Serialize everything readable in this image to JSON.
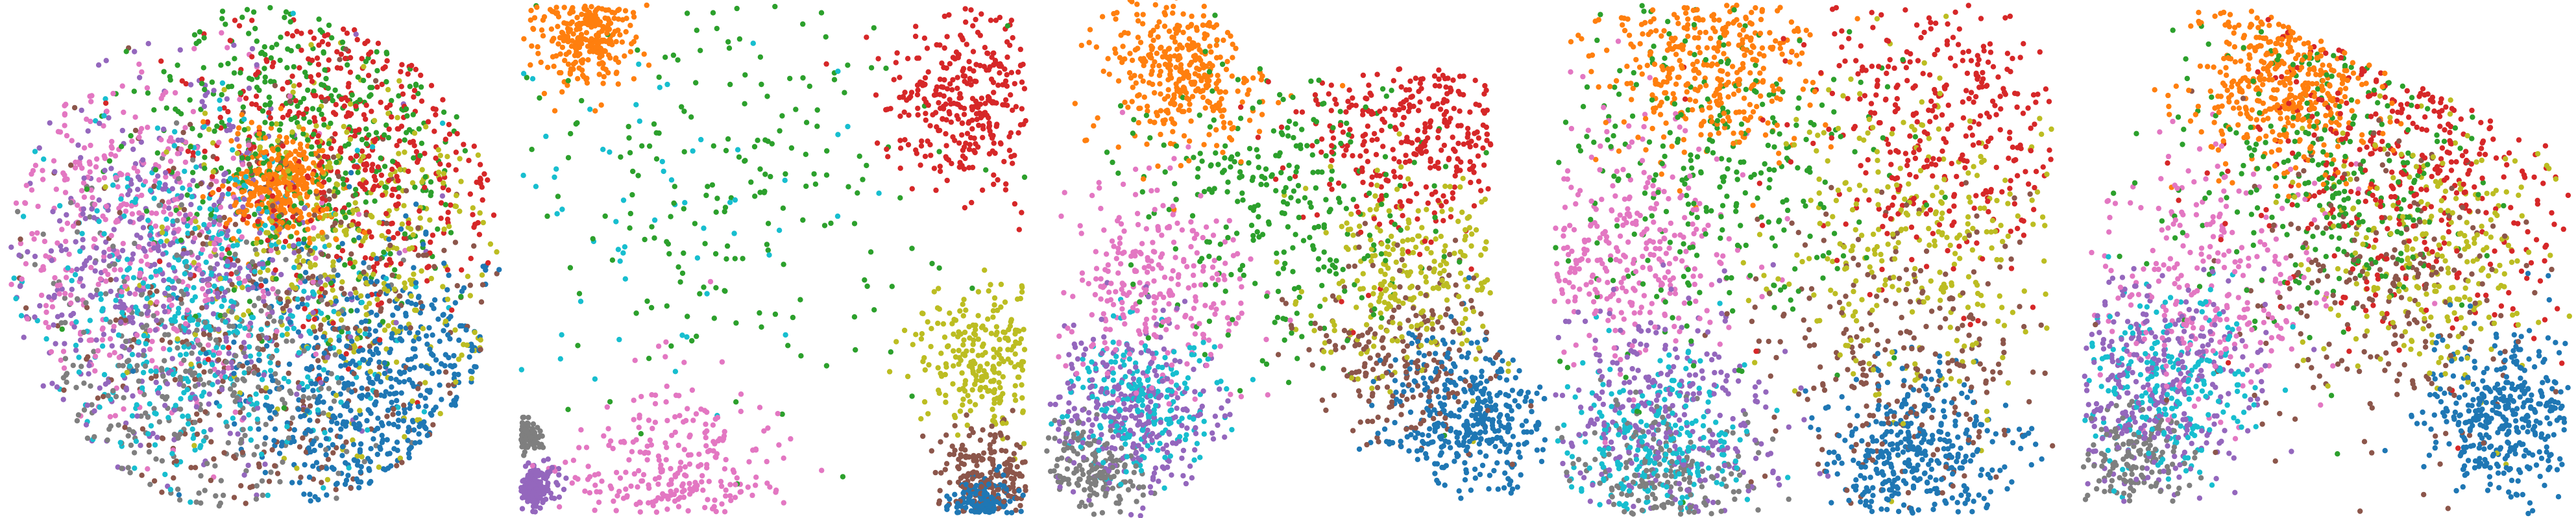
{
  "palette": {
    "0": "#1f77b4",
    "1": "#ff7f0e",
    "2": "#2ca02c",
    "3": "#d62728",
    "4": "#9467bd",
    "5": "#8c564b",
    "6": "#e377c2",
    "7": "#7f7f7f",
    "8": "#bcbd22",
    "9": "#17becf"
  },
  "chart_data": [
    {
      "type": "scatter",
      "title": "",
      "xlabel": "",
      "ylabel": "",
      "axes_visible": false,
      "grid": false,
      "legend": "none",
      "classes": [
        "0",
        "1",
        "2",
        "3",
        "4",
        "5",
        "6",
        "7",
        "8",
        "9"
      ],
      "x_range": [
        -1,
        1
      ],
      "y_range": [
        -1,
        1
      ],
      "shape": "disk",
      "clusters": [
        {
          "class": "0",
          "cx": 0.55,
          "cy": -0.55,
          "spread": 0.3,
          "n": 520
        },
        {
          "class": "1",
          "cx": 0.1,
          "cy": 0.28,
          "spread": 0.1,
          "n": 320
        },
        {
          "class": "2",
          "cx": 0.25,
          "cy": 0.55,
          "spread": 0.35,
          "n": 420
        },
        {
          "class": "3",
          "cx": 0.45,
          "cy": 0.5,
          "spread": 0.35,
          "n": 420
        },
        {
          "class": "4",
          "cx": -0.4,
          "cy": -0.1,
          "spread": 0.4,
          "n": 480
        },
        {
          "class": "5",
          "cx": 0.1,
          "cy": -0.3,
          "spread": 0.45,
          "n": 360
        },
        {
          "class": "6",
          "cx": -0.55,
          "cy": 0.1,
          "spread": 0.35,
          "n": 400
        },
        {
          "class": "7",
          "cx": -0.3,
          "cy": -0.45,
          "spread": 0.35,
          "n": 360
        },
        {
          "class": "8",
          "cx": 0.4,
          "cy": 0.05,
          "spread": 0.35,
          "n": 380
        },
        {
          "class": "9",
          "cx": -0.25,
          "cy": -0.2,
          "spread": 0.35,
          "n": 460
        }
      ]
    },
    {
      "type": "scatter",
      "title": "",
      "xlabel": "",
      "ylabel": "",
      "axes_visible": false,
      "grid": false,
      "legend": "none",
      "classes": [
        "0",
        "1",
        "2",
        "3",
        "4",
        "5",
        "6",
        "7",
        "8",
        "9"
      ],
      "x_range": [
        -1,
        1
      ],
      "y_range": [
        -1,
        1
      ],
      "shape": "square",
      "clusters": [
        {
          "class": "0",
          "cx": 0.82,
          "cy": -0.98,
          "spread": 0.06,
          "n": 160
        },
        {
          "class": "1",
          "cx": -0.75,
          "cy": 0.9,
          "spread": 0.1,
          "n": 260
        },
        {
          "class": "2",
          "cx": -0.2,
          "cy": 0.35,
          "spread": 0.45,
          "n": 200
        },
        {
          "class": "3",
          "cx": 0.8,
          "cy": 0.6,
          "spread": 0.18,
          "n": 320
        },
        {
          "class": "4",
          "cx": -0.96,
          "cy": -0.9,
          "spread": 0.05,
          "n": 140
        },
        {
          "class": "5",
          "cx": 0.85,
          "cy": -0.85,
          "spread": 0.1,
          "n": 200
        },
        {
          "class": "6",
          "cx": -0.4,
          "cy": -0.9,
          "spread": 0.2,
          "n": 260
        },
        {
          "class": "7",
          "cx": -0.98,
          "cy": -0.7,
          "spread": 0.03,
          "n": 100
        },
        {
          "class": "8",
          "cx": 0.85,
          "cy": -0.4,
          "spread": 0.15,
          "n": 240
        },
        {
          "class": "9",
          "cx": -0.5,
          "cy": 0.2,
          "spread": 0.35,
          "n": 60
        }
      ]
    },
    {
      "type": "scatter",
      "title": "",
      "xlabel": "",
      "ylabel": "",
      "axes_visible": false,
      "grid": false,
      "legend": "none",
      "classes": [
        "0",
        "1",
        "2",
        "3",
        "4",
        "5",
        "6",
        "7",
        "8",
        "9"
      ],
      "x_range": [
        -1,
        1
      ],
      "y_range": [
        -1,
        1
      ],
      "shape": "blob",
      "clusters": [
        {
          "class": "0",
          "cx": 0.72,
          "cy": -0.62,
          "spread": 0.17,
          "n": 380
        },
        {
          "class": "1",
          "cx": -0.45,
          "cy": 0.75,
          "spread": 0.16,
          "n": 360
        },
        {
          "class": "2",
          "cx": -0.05,
          "cy": 0.25,
          "spread": 0.3,
          "n": 300
        },
        {
          "class": "3",
          "cx": 0.55,
          "cy": 0.55,
          "spread": 0.25,
          "n": 320
        },
        {
          "class": "4",
          "cx": -0.65,
          "cy": -0.6,
          "spread": 0.18,
          "n": 300
        },
        {
          "class": "5",
          "cx": 0.45,
          "cy": -0.4,
          "spread": 0.2,
          "n": 220
        },
        {
          "class": "6",
          "cx": -0.55,
          "cy": -0.1,
          "spread": 0.2,
          "n": 280
        },
        {
          "class": "7",
          "cx": -0.8,
          "cy": -0.85,
          "spread": 0.1,
          "n": 160
        },
        {
          "class": "8",
          "cx": 0.5,
          "cy": -0.05,
          "spread": 0.2,
          "n": 260
        },
        {
          "class": "9",
          "cx": -0.6,
          "cy": -0.55,
          "spread": 0.15,
          "n": 220
        }
      ]
    },
    {
      "type": "scatter",
      "title": "",
      "xlabel": "",
      "ylabel": "",
      "axes_visible": false,
      "grid": false,
      "legend": "none",
      "classes": [
        "0",
        "1",
        "2",
        "3",
        "4",
        "5",
        "6",
        "7",
        "8",
        "9"
      ],
      "x_range": [
        -1,
        1
      ],
      "y_range": [
        -1,
        1
      ],
      "shape": "rounded-square",
      "clusters": [
        {
          "class": "0",
          "cx": 0.45,
          "cy": -0.8,
          "spread": 0.18,
          "n": 360
        },
        {
          "class": "1",
          "cx": -0.4,
          "cy": 0.8,
          "spread": 0.22,
          "n": 360
        },
        {
          "class": "2",
          "cx": -0.4,
          "cy": 0.35,
          "spread": 0.35,
          "n": 300
        },
        {
          "class": "3",
          "cx": 0.6,
          "cy": 0.55,
          "spread": 0.3,
          "n": 340
        },
        {
          "class": "4",
          "cx": -0.55,
          "cy": -0.6,
          "spread": 0.22,
          "n": 300
        },
        {
          "class": "5",
          "cx": 0.4,
          "cy": -0.4,
          "spread": 0.3,
          "n": 260
        },
        {
          "class": "6",
          "cx": -0.7,
          "cy": 0.05,
          "spread": 0.22,
          "n": 300
        },
        {
          "class": "7",
          "cx": -0.6,
          "cy": -0.92,
          "spread": 0.2,
          "n": 180
        },
        {
          "class": "8",
          "cx": 0.45,
          "cy": 0.05,
          "spread": 0.3,
          "n": 300
        },
        {
          "class": "9",
          "cx": -0.6,
          "cy": -0.75,
          "spread": 0.2,
          "n": 240
        }
      ]
    },
    {
      "type": "scatter",
      "title": "",
      "xlabel": "",
      "ylabel": "",
      "axes_visible": false,
      "grid": false,
      "legend": "none",
      "classes": [
        "0",
        "1",
        "2",
        "3",
        "4",
        "5",
        "6",
        "7",
        "8",
        "9"
      ],
      "x_range": [
        -1,
        1
      ],
      "y_range": [
        -1,
        1
      ],
      "shape": "wedge",
      "clusters": [
        {
          "class": "0",
          "cx": 0.75,
          "cy": -0.6,
          "spread": 0.17,
          "n": 380
        },
        {
          "class": "1",
          "cx": -0.15,
          "cy": 0.7,
          "spread": 0.18,
          "n": 420
        },
        {
          "class": "2",
          "cx": 0.05,
          "cy": 0.35,
          "spread": 0.3,
          "n": 300
        },
        {
          "class": "3",
          "cx": 0.45,
          "cy": 0.45,
          "spread": 0.35,
          "n": 360
        },
        {
          "class": "4",
          "cx": -0.65,
          "cy": -0.5,
          "spread": 0.2,
          "n": 320
        },
        {
          "class": "5",
          "cx": 0.25,
          "cy": -0.15,
          "spread": 0.3,
          "n": 240
        },
        {
          "class": "6",
          "cx": -0.45,
          "cy": -0.1,
          "spread": 0.25,
          "n": 280
        },
        {
          "class": "7",
          "cx": -0.75,
          "cy": -0.8,
          "spread": 0.12,
          "n": 140
        },
        {
          "class": "8",
          "cx": 0.45,
          "cy": 0.05,
          "spread": 0.25,
          "n": 260
        },
        {
          "class": "9",
          "cx": -0.6,
          "cy": -0.5,
          "spread": 0.18,
          "n": 240
        }
      ]
    }
  ]
}
